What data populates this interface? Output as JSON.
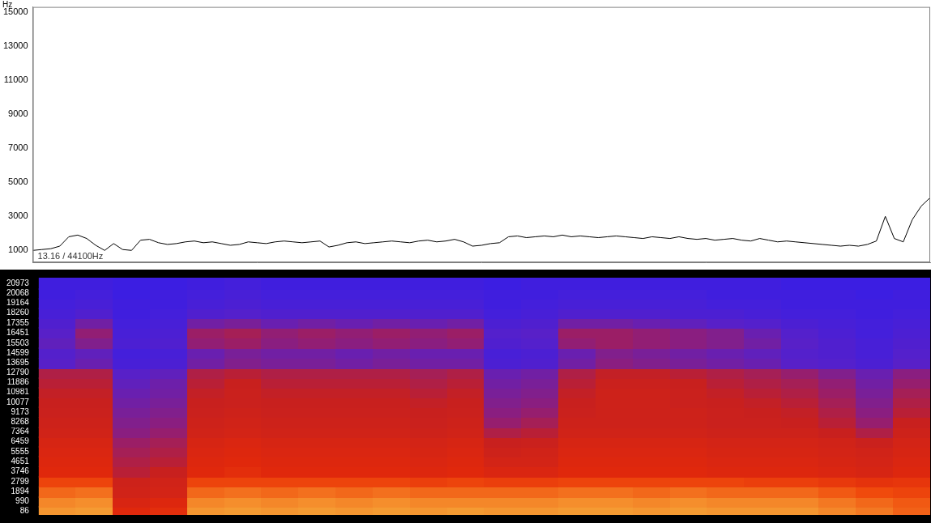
{
  "chart_data": [
    {
      "type": "line",
      "y_label": "Hz",
      "annotation": "13.16 / 44100Hz",
      "color": "#000000",
      "grid": false,
      "tick_labels": "y",
      "ylim": [
        300,
        15300
      ],
      "yticks": [
        1000,
        3000,
        5000,
        7000,
        9000,
        11000,
        13000,
        15000
      ],
      "values": [
        1000,
        1050,
        1100,
        1250,
        1800,
        1900,
        1700,
        1300,
        1000,
        1400,
        1050,
        1000,
        1600,
        1650,
        1450,
        1350,
        1400,
        1500,
        1550,
        1450,
        1500,
        1400,
        1300,
        1350,
        1500,
        1450,
        1400,
        1500,
        1550,
        1500,
        1450,
        1500,
        1550,
        1200,
        1300,
        1450,
        1500,
        1400,
        1450,
        1500,
        1550,
        1500,
        1450,
        1550,
        1600,
        1500,
        1550,
        1650,
        1500,
        1250,
        1300,
        1400,
        1450,
        1800,
        1850,
        1750,
        1800,
        1850,
        1800,
        1900,
        1800,
        1850,
        1800,
        1750,
        1800,
        1850,
        1800,
        1750,
        1700,
        1800,
        1750,
        1700,
        1800,
        1700,
        1650,
        1700,
        1600,
        1650,
        1700,
        1600,
        1550,
        1700,
        1600,
        1500,
        1550,
        1500,
        1450,
        1400,
        1350,
        1300,
        1250,
        1300,
        1250,
        1350,
        1550,
        3000,
        1700,
        1500,
        2800,
        3600,
        4100
      ]
    },
    {
      "type": "heatmap",
      "tick_labels": "y",
      "ylim": [
        -250,
        21500
      ],
      "yticks": [
        86,
        990,
        1894,
        2799,
        3746,
        4651,
        5555,
        6459,
        7364,
        8268,
        9173,
        10077,
        10981,
        11886,
        12790,
        13695,
        14599,
        15503,
        16451,
        17355,
        18260,
        19164,
        20068,
        20973
      ],
      "y": [
        86,
        990,
        1894,
        2799,
        3746,
        4651,
        5555,
        6459,
        7364,
        8268,
        9173,
        10077,
        10981,
        11886,
        12790,
        13695,
        14599,
        15503,
        16451,
        17355,
        18260,
        19164,
        20068,
        20973
      ],
      "zlim": [
        0,
        100
      ],
      "cells": [
        [
          92,
          93,
          70,
          72,
          92,
          93,
          92,
          93,
          92,
          93,
          92,
          93,
          92,
          92,
          93,
          93,
          92,
          93,
          92,
          92,
          92,
          90,
          88,
          85
        ],
        [
          90,
          91,
          65,
          68,
          90,
          91,
          90,
          91,
          90,
          91,
          90,
          90,
          90,
          90,
          91,
          91,
          90,
          91,
          90,
          90,
          90,
          88,
          86,
          84
        ],
        [
          86,
          87,
          60,
          62,
          86,
          87,
          86,
          87,
          86,
          87,
          86,
          86,
          86,
          86,
          87,
          87,
          86,
          87,
          86,
          86,
          86,
          84,
          82,
          80
        ],
        [
          80,
          80,
          58,
          60,
          80,
          80,
          80,
          80,
          80,
          80,
          78,
          80,
          78,
          78,
          80,
          80,
          80,
          80,
          80,
          78,
          78,
          76,
          74,
          75
        ],
        [
          70,
          70,
          52,
          55,
          70,
          72,
          70,
          70,
          70,
          70,
          68,
          70,
          66,
          66,
          70,
          70,
          70,
          70,
          68,
          68,
          68,
          66,
          64,
          68
        ],
        [
          68,
          68,
          50,
          52,
          68,
          70,
          68,
          68,
          68,
          68,
          66,
          68,
          62,
          62,
          68,
          68,
          68,
          68,
          66,
          66,
          66,
          64,
          62,
          66
        ],
        [
          66,
          66,
          48,
          50,
          66,
          68,
          66,
          66,
          66,
          66,
          64,
          66,
          58,
          60,
          66,
          66,
          66,
          66,
          64,
          64,
          64,
          62,
          60,
          64
        ],
        [
          64,
          64,
          46,
          48,
          64,
          66,
          64,
          64,
          64,
          64,
          62,
          64,
          55,
          56,
          64,
          64,
          64,
          64,
          62,
          62,
          62,
          60,
          56,
          62
        ],
        [
          60,
          60,
          42,
          45,
          60,
          62,
          60,
          60,
          60,
          60,
          58,
          60,
          50,
          52,
          60,
          60,
          60,
          60,
          58,
          58,
          58,
          55,
          50,
          58
        ],
        [
          58,
          58,
          40,
          42,
          58,
          60,
          58,
          58,
          58,
          58,
          56,
          58,
          45,
          48,
          58,
          58,
          58,
          58,
          56,
          56,
          55,
          52,
          45,
          55
        ],
        [
          56,
          56,
          38,
          40,
          56,
          58,
          56,
          56,
          56,
          56,
          55,
          56,
          42,
          45,
          56,
          58,
          58,
          58,
          56,
          55,
          54,
          50,
          42,
          52
        ],
        [
          55,
          55,
          36,
          38,
          55,
          56,
          55,
          55,
          55,
          55,
          54,
          55,
          40,
          42,
          55,
          58,
          58,
          56,
          55,
          54,
          52,
          48,
          40,
          50
        ],
        [
          54,
          54,
          34,
          36,
          54,
          56,
          54,
          54,
          54,
          54,
          52,
          54,
          38,
          40,
          54,
          58,
          58,
          56,
          54,
          52,
          50,
          46,
          38,
          48
        ],
        [
          52,
          52,
          32,
          35,
          52,
          55,
          52,
          52,
          52,
          52,
          50,
          52,
          36,
          38,
          52,
          56,
          56,
          55,
          52,
          50,
          48,
          44,
          36,
          45
        ],
        [
          50,
          50,
          30,
          32,
          50,
          52,
          50,
          50,
          50,
          50,
          48,
          50,
          34,
          36,
          50,
          54,
          54,
          52,
          50,
          48,
          45,
          40,
          34,
          42
        ],
        [
          30,
          34,
          22,
          24,
          36,
          40,
          38,
          38,
          36,
          38,
          36,
          36,
          24,
          26,
          36,
          42,
          40,
          38,
          36,
          34,
          30,
          28,
          24,
          30
        ],
        [
          28,
          32,
          20,
          22,
          34,
          38,
          36,
          36,
          34,
          36,
          34,
          34,
          22,
          24,
          34,
          40,
          38,
          36,
          34,
          32,
          28,
          26,
          22,
          28
        ],
        [
          32,
          40,
          24,
          26,
          44,
          46,
          42,
          44,
          42,
          44,
          42,
          44,
          26,
          28,
          44,
          46,
          44,
          42,
          40,
          36,
          30,
          26,
          22,
          26
        ],
        [
          30,
          44,
          22,
          24,
          46,
          48,
          44,
          46,
          44,
          46,
          44,
          46,
          28,
          30,
          46,
          46,
          44,
          42,
          40,
          34,
          28,
          24,
          20,
          24
        ],
        [
          26,
          36,
          20,
          22,
          36,
          38,
          34,
          36,
          34,
          36,
          34,
          36,
          24,
          26,
          36,
          36,
          34,
          32,
          30,
          28,
          24,
          22,
          20,
          22
        ],
        [
          22,
          26,
          18,
          20,
          26,
          28,
          26,
          26,
          26,
          26,
          26,
          26,
          20,
          22,
          26,
          26,
          26,
          24,
          24,
          22,
          20,
          20,
          18,
          20
        ],
        [
          20,
          22,
          18,
          18,
          22,
          24,
          22,
          22,
          22,
          22,
          22,
          22,
          18,
          20,
          22,
          22,
          22,
          22,
          20,
          20,
          18,
          18,
          18,
          18
        ],
        [
          18,
          20,
          16,
          18,
          20,
          22,
          20,
          20,
          20,
          20,
          20,
          20,
          18,
          18,
          20,
          20,
          20,
          20,
          18,
          18,
          18,
          18,
          16,
          18
        ],
        [
          18,
          18,
          16,
          16,
          18,
          20,
          18,
          18,
          18,
          18,
          18,
          18,
          16,
          18,
          18,
          18,
          18,
          18,
          18,
          18,
          16,
          16,
          16,
          16
        ]
      ]
    }
  ]
}
